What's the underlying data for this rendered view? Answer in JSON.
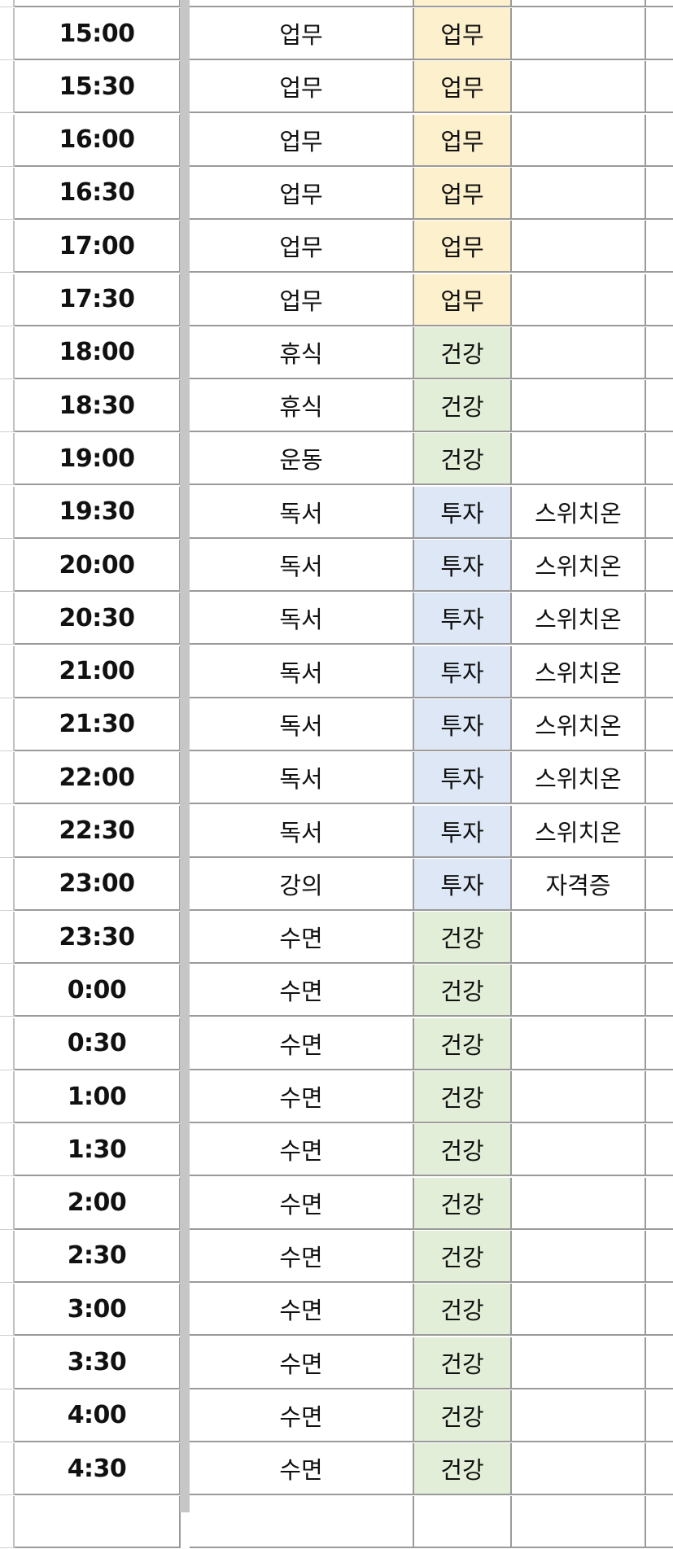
{
  "category_colors": {
    "업무": "#fdf0cc",
    "건강": "#e3eed8",
    "투자": "#dde7f5"
  },
  "rows": [
    {
      "time": "15:00",
      "activity": "업무",
      "category": "업무",
      "note": ""
    },
    {
      "time": "15:30",
      "activity": "업무",
      "category": "업무",
      "note": ""
    },
    {
      "time": "16:00",
      "activity": "업무",
      "category": "업무",
      "note": ""
    },
    {
      "time": "16:30",
      "activity": "업무",
      "category": "업무",
      "note": ""
    },
    {
      "time": "17:00",
      "activity": "업무",
      "category": "업무",
      "note": ""
    },
    {
      "time": "17:30",
      "activity": "업무",
      "category": "업무",
      "note": ""
    },
    {
      "time": "18:00",
      "activity": "휴식",
      "category": "건강",
      "note": ""
    },
    {
      "time": "18:30",
      "activity": "휴식",
      "category": "건강",
      "note": ""
    },
    {
      "time": "19:00",
      "activity": "운동",
      "category": "건강",
      "note": ""
    },
    {
      "time": "19:30",
      "activity": "독서",
      "category": "투자",
      "note": "스위치온"
    },
    {
      "time": "20:00",
      "activity": "독서",
      "category": "투자",
      "note": "스위치온"
    },
    {
      "time": "20:30",
      "activity": "독서",
      "category": "투자",
      "note": "스위치온"
    },
    {
      "time": "21:00",
      "activity": "독서",
      "category": "투자",
      "note": "스위치온"
    },
    {
      "time": "21:30",
      "activity": "독서",
      "category": "투자",
      "note": "스위치온"
    },
    {
      "time": "22:00",
      "activity": "독서",
      "category": "투자",
      "note": "스위치온"
    },
    {
      "time": "22:30",
      "activity": "독서",
      "category": "투자",
      "note": "스위치온"
    },
    {
      "time": "23:00",
      "activity": "강의",
      "category": "투자",
      "note": "자격증"
    },
    {
      "time": "23:30",
      "activity": "수면",
      "category": "건강",
      "note": ""
    },
    {
      "time": "0:00",
      "activity": "수면",
      "category": "건강",
      "note": ""
    },
    {
      "time": "0:30",
      "activity": "수면",
      "category": "건강",
      "note": ""
    },
    {
      "time": "1:00",
      "activity": "수면",
      "category": "건강",
      "note": ""
    },
    {
      "time": "1:30",
      "activity": "수면",
      "category": "건강",
      "note": ""
    },
    {
      "time": "2:00",
      "activity": "수면",
      "category": "건강",
      "note": ""
    },
    {
      "time": "2:30",
      "activity": "수면",
      "category": "건강",
      "note": ""
    },
    {
      "time": "3:00",
      "activity": "수면",
      "category": "건강",
      "note": ""
    },
    {
      "time": "3:30",
      "activity": "수면",
      "category": "건강",
      "note": ""
    },
    {
      "time": "4:00",
      "activity": "수면",
      "category": "건강",
      "note": ""
    },
    {
      "time": "4:30",
      "activity": "수면",
      "category": "건강",
      "note": ""
    }
  ]
}
